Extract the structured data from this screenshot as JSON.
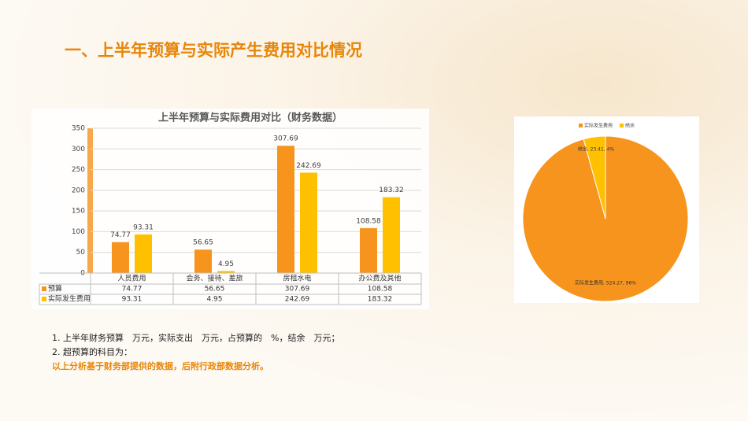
{
  "title": "一、上半年预算与实际产生费用对比情况",
  "chart_data": [
    {
      "type": "bar",
      "title": "上半年预算与实际费用对比（财务数据）",
      "categories": [
        "人员费用",
        "会务、接待、差旅",
        "房租水电",
        "办公费及其他"
      ],
      "series": [
        {
          "name": "预算",
          "color": "#f7941d",
          "values": [
            74.77,
            56.65,
            307.69,
            108.58
          ]
        },
        {
          "name": "实际发生费用",
          "color": "#ffc000",
          "values": [
            93.31,
            4.95,
            242.69,
            183.32
          ]
        }
      ],
      "ylim": [
        0,
        350
      ],
      "yticks": [
        0,
        50,
        100,
        150,
        200,
        250,
        300,
        350
      ],
      "grid": true,
      "data_table": true
    },
    {
      "type": "pie",
      "categories": [
        "实际发生费用",
        "结余"
      ],
      "values": [
        524.27,
        23.41
      ],
      "value_labels": [
        "实际发生费用, 524.27, 96%",
        "结余, 23.41, 4%"
      ],
      "colors": [
        "#f7941d",
        "#ffc000"
      ],
      "legend": "top"
    }
  ],
  "notes": [
    "1. 上半年财务预算　万元，实际支出　万元，占预算的　%，结余　万元；",
    "2. 超预算的科目为：",
    "以上分析基于财务部提供的数据，后附行政部数据分析。"
  ]
}
